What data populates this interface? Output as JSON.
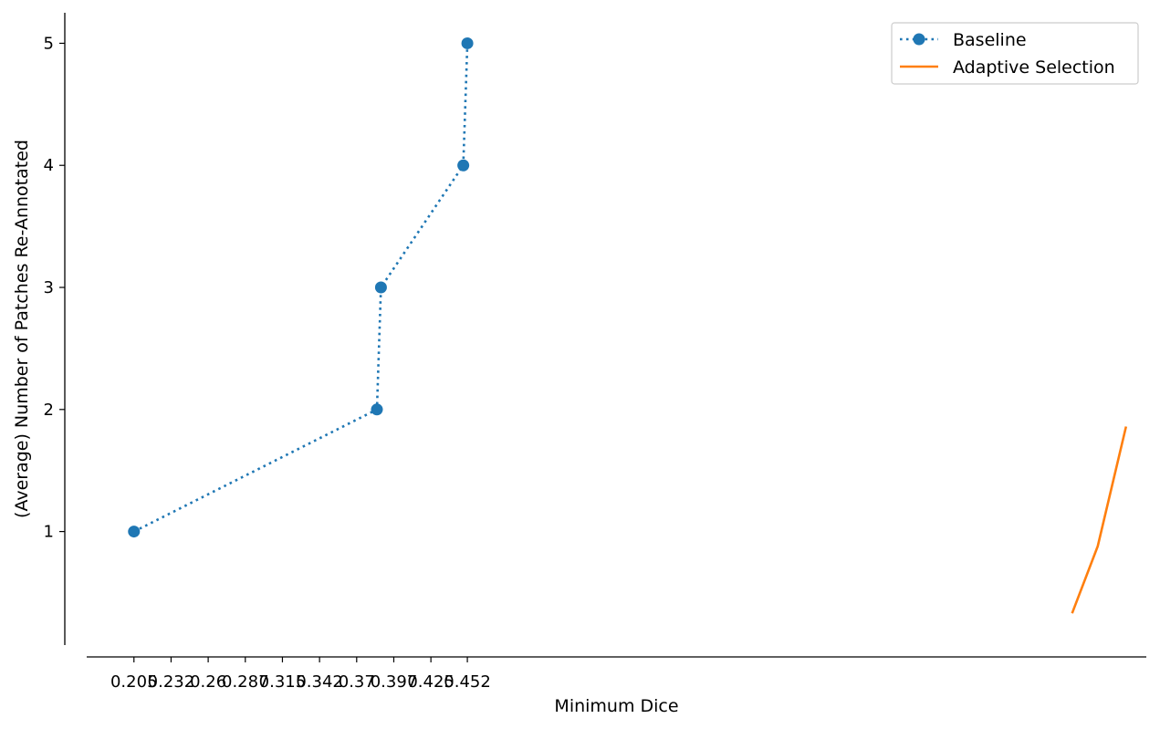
{
  "chart_data": {
    "type": "line",
    "xlabel": "Minimum Dice",
    "ylabel": "(Average) Number of Patches Re-Annotated",
    "xticks": [
      0.205,
      0.2325,
      0.26,
      0.2875,
      0.315,
      0.3425,
      0.37,
      0.3975,
      0.425,
      0.452
    ],
    "xtick_labels": [
      "0.205",
      "0.232",
      "0.26",
      "0.287",
      "0.315",
      "0.342",
      "0.37",
      "0.397",
      "0.425",
      "0.452"
    ],
    "yticks": [
      1,
      2,
      3,
      4,
      5
    ],
    "ytick_labels": [
      "1",
      "2",
      "3",
      "4",
      "5"
    ],
    "xlim": [
      0.17,
      0.955
    ],
    "ylim": [
      0.07,
      5.25
    ],
    "grid": false,
    "legend_position": "top-right",
    "series": [
      {
        "name": "Baseline",
        "color": "#1f77b4",
        "linestyle": "dotted",
        "marker": "circle",
        "x": [
          0.205,
          0.385,
          0.388,
          0.449,
          0.452
        ],
        "y": [
          1,
          2,
          3,
          4,
          5
        ]
      },
      {
        "name": "Adaptive Selection",
        "color": "#ff7f0e",
        "linestyle": "solid",
        "marker": "none",
        "x": [
          0.9,
          0.919,
          0.94
        ],
        "y": [
          0.33,
          0.88,
          1.86
        ]
      }
    ]
  }
}
